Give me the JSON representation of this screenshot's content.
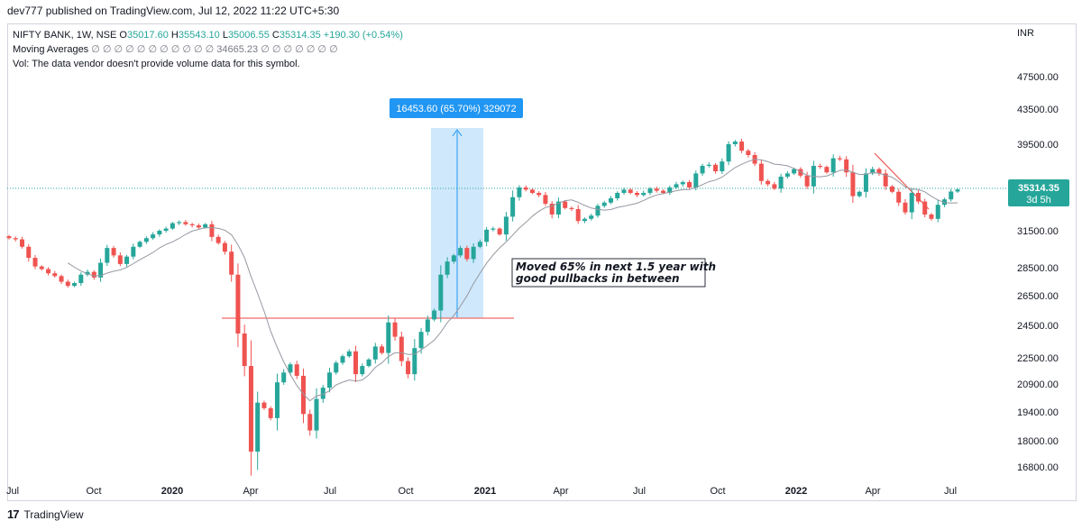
{
  "publisher": "dev777 published on TradingView.com, Jul 12, 2022 11:22 UTC+5:30",
  "legend": {
    "symbol": "NIFTY BANK, 1W, NSE",
    "open_label": "O",
    "open": "35017.60",
    "high_label": "H",
    "high": "35543.10",
    "low_label": "L",
    "low": "35006.55",
    "close_label": "C",
    "close": "35314.35",
    "change": "+190.30 (+0.54%)",
    "ma_label": "Moving Averages",
    "ma_values": "∅ ∅ ∅ ∅ ∅ ∅ ∅ ∅ ∅ ∅ ∅",
    "ma_value": "34665.23",
    "ma_values2": "∅ ∅ ∅ ∅ ∅ ∅ ∅",
    "vol": "Vol: The data vendor doesn't provide volume data for this symbol."
  },
  "footer": {
    "brand": "TradingView",
    "logo": "17"
  },
  "colors": {
    "up": "#26a69a",
    "down": "#ef5350",
    "ma": "#9598a1",
    "range_fill": "#bbdefb",
    "range_line": "#2196f3",
    "support": "#f06a6a",
    "price_line": "#26a69a"
  },
  "chart_data": {
    "type": "candlestick",
    "currency": "INR",
    "interval": "1W",
    "y_ticks": [
      "47500.00",
      "43500.00",
      "39500.00",
      "35314.35",
      "31500.00",
      "28500.00",
      "26500.00",
      "24500.00",
      "22500.00",
      "20900.00",
      "19400.00",
      "18000.00",
      "16800.00"
    ],
    "x_ticks": [
      "Jul",
      "Oct",
      "2020",
      "Apr",
      "Jul",
      "Oct",
      "2021",
      "Apr",
      "Jul",
      "Oct",
      "2022",
      "Apr",
      "Jul"
    ],
    "last_price": "35314.35",
    "countdown": "3d 5h",
    "range_measure": {
      "label": "16453.60 (65.70%) 329072",
      "from": 25100,
      "to": 41550
    },
    "support_level": 25100,
    "annotation": [
      "Moved 65% in next 1.5 year with",
      "good pullbacks in between"
    ],
    "grid": false,
    "series": [
      {
        "name": "NIFTY BANK",
        "values": [
          30900,
          30800,
          30200,
          29300,
          28600,
          28400,
          28100,
          27900,
          27500,
          27200,
          27400,
          28000,
          28200,
          27800,
          28900,
          30100,
          29500,
          28800,
          29400,
          30200,
          30600,
          30900,
          31200,
          31500,
          31700,
          32200,
          32300,
          32100,
          32000,
          31800,
          32100,
          31000,
          30500,
          29800,
          28000,
          24000,
          22000,
          17500,
          19900,
          19600,
          19100,
          21000,
          21600,
          22100,
          21400,
          19300,
          18500,
          20100,
          20700,
          21600,
          22200,
          22600,
          22900,
          21500,
          22000,
          22400,
          23200,
          22800,
          24700,
          23800,
          22300,
          21500,
          23100,
          24100,
          24900,
          25500,
          28000,
          29000,
          29500,
          30100,
          29200,
          30200,
          30600,
          31600,
          31700,
          31200,
          32800,
          34600,
          35500,
          35300,
          35000,
          34800,
          34000,
          33000,
          34200,
          33600,
          33500,
          32400,
          32600,
          32900,
          33800,
          34100,
          34500,
          35000,
          35300,
          35000,
          34800,
          35000,
          35400,
          35200,
          35000,
          35500,
          35800,
          36000,
          35500,
          36800,
          37500,
          37600,
          37000,
          37900,
          39500,
          39800,
          38900,
          38500,
          37700,
          36100,
          35800,
          35400,
          36500,
          36800,
          37200,
          36600,
          35600,
          37500,
          37400,
          36900,
          38200,
          38100,
          36900,
          34700,
          35100,
          36800,
          37200,
          36800,
          35600,
          35100,
          34100,
          33200,
          35000,
          34200,
          33000,
          32600,
          33900,
          34400,
          35124,
          35314
        ]
      }
    ],
    "moving_average": {
      "name": "Moving Averages",
      "last": "34665.23"
    }
  }
}
